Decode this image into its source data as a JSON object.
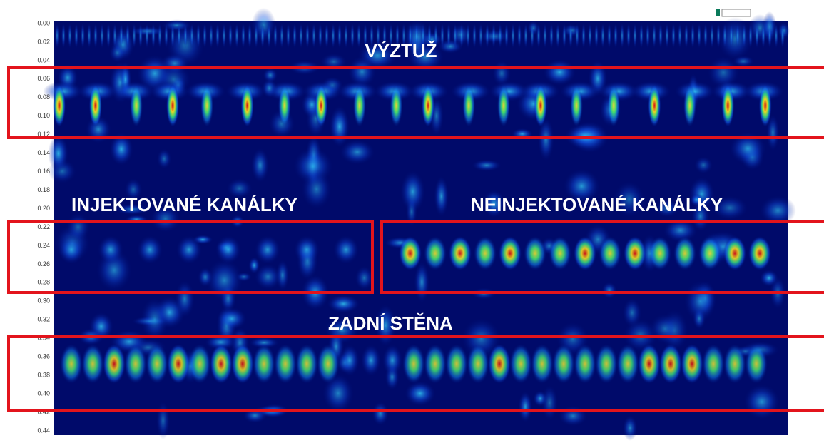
{
  "labels": {
    "rebar": "VÝZTUŽ",
    "injected": "INJEKTOVANÉ KANÁLKY",
    "not_injected": "NEINJEKTOVANÉ KANÁLKY",
    "back_wall": "ZADNÍ STĚNA"
  },
  "depth_ticks": [
    "0.00",
    "0.02",
    "0.04",
    "0.06",
    "0.08",
    "0.10",
    "0.12",
    "0.14",
    "0.16",
    "0.18",
    "0.20",
    "0.22",
    "0.24",
    "0.26",
    "0.28",
    "0.30",
    "0.32",
    "0.34",
    "0.36",
    "0.38",
    "0.40",
    "0.42",
    "0.44"
  ]
}
